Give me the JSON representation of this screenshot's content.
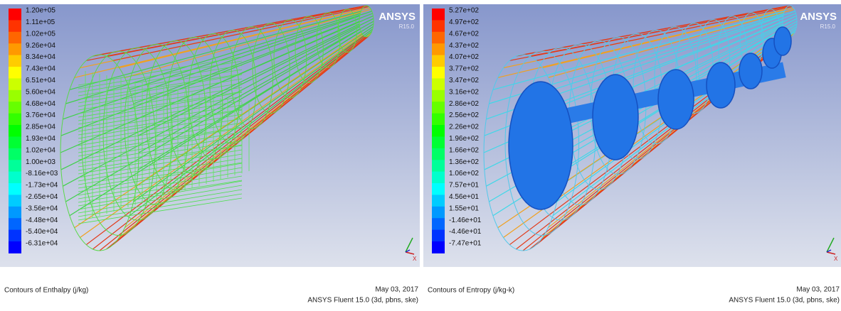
{
  "panels": [
    {
      "legend": [
        "1.20e+05",
        "1.11e+05",
        "1.02e+05",
        "9.26e+04",
        "8.34e+04",
        "7.43e+04",
        "6.51e+04",
        "5.60e+04",
        "4.68e+04",
        "3.76e+04",
        "2.85e+04",
        "1.93e+04",
        "1.02e+04",
        "1.00e+03",
        "-8.16e+03",
        "-1.73e+04",
        "-2.65e+04",
        "-3.56e+04",
        "-4.48e+04",
        "-5.40e+04",
        "-6.31e+04"
      ],
      "logo": "ANSYS",
      "version": "R15.0",
      "triad": "X",
      "caption": "Contours of Enthalpy (j/kg)",
      "date": "May 03, 2017",
      "software": "ANSYS Fluent 15.0 (3d, pbns, ske)"
    },
    {
      "legend": [
        "5.27e+02",
        "4.97e+02",
        "4.67e+02",
        "4.37e+02",
        "4.07e+02",
        "3.77e+02",
        "3.47e+02",
        "3.16e+02",
        "2.86e+02",
        "2.56e+02",
        "2.26e+02",
        "1.96e+02",
        "1.66e+02",
        "1.36e+02",
        "1.06e+02",
        "7.57e+01",
        "4.56e+01",
        "1.55e+01",
        "-1.46e+01",
        "-4.46e+01",
        "-7.47e+01"
      ],
      "logo": "ANSYS",
      "version": "R15.0",
      "triad": "X",
      "caption": "Contours of Entropy (j/kg-k)",
      "date": "May 03, 2017",
      "software": "ANSYS Fluent 15.0 (3d, pbns, ske)"
    }
  ]
}
